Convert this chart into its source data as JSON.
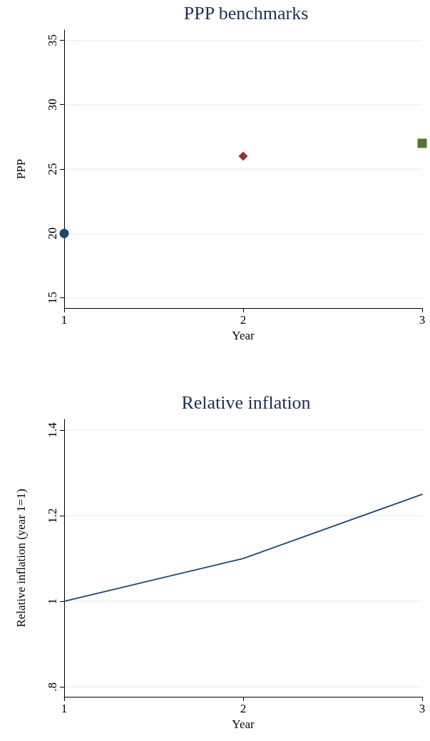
{
  "chart_data": [
    {
      "type": "scatter",
      "title": "PPP benchmarks",
      "xlabel": "Year",
      "ylabel": "PPP",
      "xlim": [
        1,
        3
      ],
      "xticks": [
        1,
        2,
        3
      ],
      "ylim": [
        14.2,
        35.8
      ],
      "yticks": [
        15,
        20,
        25,
        30,
        35
      ],
      "grid": "y",
      "series": [
        {
          "color": "#1a476f",
          "marker": "circle",
          "x": [
            1
          ],
          "values": [
            20
          ]
        },
        {
          "color": "#90353b",
          "marker": "diamond",
          "x": [
            2
          ],
          "values": [
            26
          ]
        },
        {
          "color": "#55752f",
          "marker": "square",
          "x": [
            3
          ],
          "values": [
            27
          ]
        }
      ]
    },
    {
      "type": "line",
      "title": "Relative inflation",
      "xlabel": "Year",
      "ylabel": "Relative inflation (year 1=1)",
      "xlim": [
        1,
        3
      ],
      "xticks": [
        1,
        2,
        3
      ],
      "ylim": [
        0.777,
        1.425
      ],
      "yticks": [
        {
          "value": 0.8,
          "label": ".8"
        },
        1,
        1.2,
        1.4
      ],
      "grid": "y",
      "marker": "none",
      "x": [
        1,
        2,
        3
      ],
      "series": [
        {
          "color": "#1a476f",
          "values": [
            1,
            1.1,
            1.25
          ]
        }
      ]
    }
  ]
}
